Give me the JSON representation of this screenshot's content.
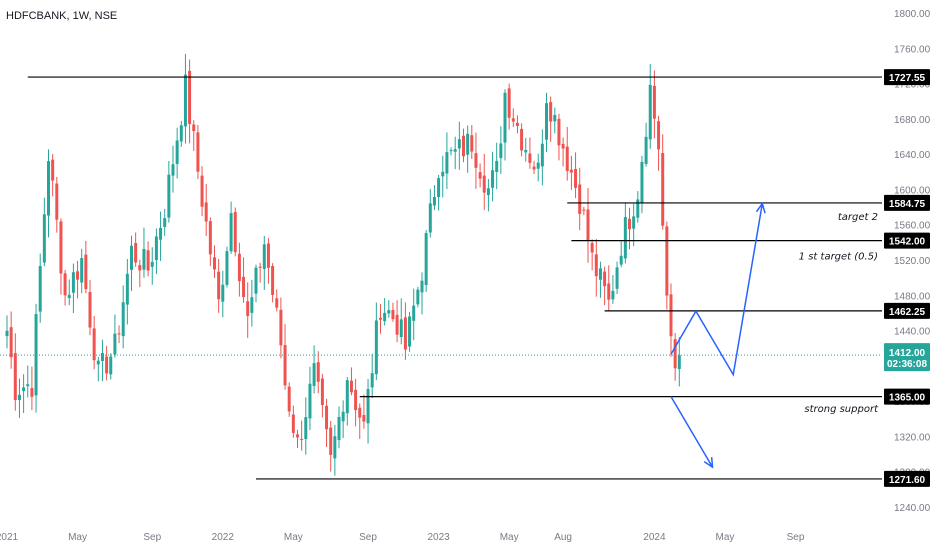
{
  "header": {
    "symbol_label": "HDFCBANK, 1W, NSE"
  },
  "colors": {
    "up": "#26a69a",
    "down": "#ef5350",
    "line": "#000000",
    "arrow": "#2962ff",
    "current": "#26a69a"
  },
  "chart_data": {
    "type": "candlestick",
    "symbol": "HDFCBANK",
    "interval": "1W",
    "exchange": "NSE",
    "ylim": [
      1225,
      1815
    ],
    "y_ticks": [
      1800,
      1760,
      1720,
      1680,
      1640,
      1600,
      1560,
      1520,
      1480,
      1440,
      1400,
      1360,
      1320,
      1280,
      1240
    ],
    "y_tick_labels": [
      "1800.00",
      "1760.00",
      "1720.00",
      "1680.00",
      "1640.00",
      "1600.00",
      "1560.00",
      "1520.00",
      "1480.00",
      "1440.00",
      "1400.00",
      "1360.00",
      "1320.00",
      "1280.00",
      "1240.00"
    ],
    "x_labels": [
      {
        "label": "2021",
        "week": 0
      },
      {
        "label": "May",
        "week": 17
      },
      {
        "label": "Sep",
        "week": 35
      },
      {
        "label": "2022",
        "week": 52
      },
      {
        "label": "May",
        "week": 69
      },
      {
        "label": "Sep",
        "week": 87
      },
      {
        "label": "2023",
        "week": 104
      },
      {
        "label": "May",
        "week": 121
      },
      {
        "label": "Aug",
        "week": 134
      },
      {
        "label": "2024",
        "week": 156
      },
      {
        "label": "May",
        "week": 173
      },
      {
        "label": "Sep",
        "week": 190
      }
    ],
    "total_weeks": 209,
    "levels": [
      {
        "value": 1727.55,
        "label": "1727.55",
        "from_week": 5
      },
      {
        "value": 1584.75,
        "label": "1584.75",
        "from_week": 135
      },
      {
        "value": 1542.0,
        "label": "1542.00",
        "from_week": 136
      },
      {
        "value": 1462.25,
        "label": "1462.25",
        "from_week": 144
      },
      {
        "value": 1365.0,
        "label": "1365.00",
        "from_week": 85
      },
      {
        "value": 1271.6,
        "label": "1271.60",
        "from_week": 60
      }
    ],
    "current_price": {
      "value": 1412.0,
      "label": "1412.00",
      "countdown": "02:36:08"
    },
    "annotations": [
      {
        "text": "target 2",
        "price": 1570,
        "week": 190
      },
      {
        "text": "1 st target (0.5)",
        "price": 1525,
        "week": 183
      },
      {
        "text": "strong support",
        "price": 1352,
        "week": 184
      }
    ],
    "projections": [
      {
        "points": [
          [
            160,
            1413
          ],
          [
            166,
            1462
          ],
          [
            175,
            1390
          ],
          [
            182,
            1584
          ]
        ]
      },
      {
        "points": [
          [
            160,
            1365
          ],
          [
            170,
            1285
          ]
        ]
      }
    ],
    "keypoints": [
      [
        0,
        1440
      ],
      [
        2,
        1375
      ],
      [
        6,
        1380
      ],
      [
        10,
        1640
      ],
      [
        14,
        1480
      ],
      [
        18,
        1520
      ],
      [
        22,
        1390
      ],
      [
        26,
        1420
      ],
      [
        30,
        1530
      ],
      [
        34,
        1510
      ],
      [
        38,
        1580
      ],
      [
        43,
        1715
      ],
      [
        47,
        1590
      ],
      [
        51,
        1470
      ],
      [
        54,
        1575
      ],
      [
        58,
        1450
      ],
      [
        62,
        1540
      ],
      [
        66,
        1425
      ],
      [
        67,
        1380
      ],
      [
        70,
        1310
      ],
      [
        74,
        1390
      ],
      [
        78,
        1290
      ],
      [
        82,
        1390
      ],
      [
        86,
        1330
      ],
      [
        90,
        1470
      ],
      [
        94,
        1450
      ],
      [
        96,
        1420
      ],
      [
        100,
        1510
      ],
      [
        104,
        1630
      ],
      [
        108,
        1640
      ],
      [
        112,
        1655
      ],
      [
        116,
        1600
      ],
      [
        118,
        1620
      ],
      [
        120,
        1710
      ],
      [
        124,
        1660
      ],
      [
        128,
        1620
      ],
      [
        130,
        1710
      ],
      [
        134,
        1650
      ],
      [
        136,
        1620
      ],
      [
        138,
        1590
      ],
      [
        141,
        1520
      ],
      [
        145,
        1470
      ],
      [
        148,
        1540
      ],
      [
        152,
        1600
      ],
      [
        155,
        1715
      ],
      [
        157,
        1650
      ],
      [
        159,
        1465
      ],
      [
        161,
        1400
      ],
      [
        162,
        1412
      ]
    ]
  }
}
